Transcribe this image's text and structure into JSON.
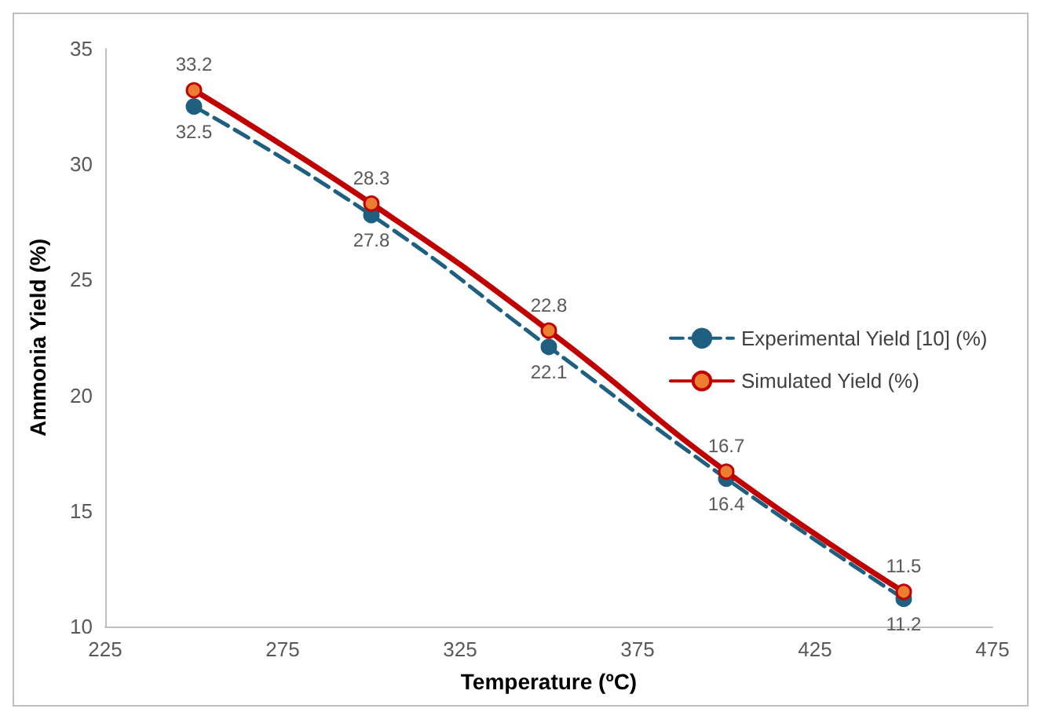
{
  "chart_data": {
    "type": "line",
    "xlabel": "Temperature (ºC)",
    "ylabel": "Ammonia Yield (%)",
    "x": [
      250,
      300,
      350,
      400,
      450
    ],
    "series": [
      {
        "name": "Experimental Yield [10] (%)",
        "color": "#1f5f7f",
        "values": [
          32.5,
          27.8,
          22.1,
          16.4,
          11.2
        ],
        "line_style": "dashed"
      },
      {
        "name": "Simulated Yield (%)",
        "color": "#c00000",
        "values": [
          33.2,
          28.3,
          22.8,
          16.7,
          11.5
        ],
        "line_style": "solid"
      }
    ],
    "xlim": [
      225,
      475
    ],
    "xticks": [
      225,
      275,
      325,
      375,
      425,
      475
    ],
    "ylim": [
      10,
      35
    ],
    "yticks": [
      10,
      15,
      20,
      25,
      30,
      35
    ],
    "grid": false,
    "legend": "right",
    "marker": "circle",
    "data_labels": true
  }
}
